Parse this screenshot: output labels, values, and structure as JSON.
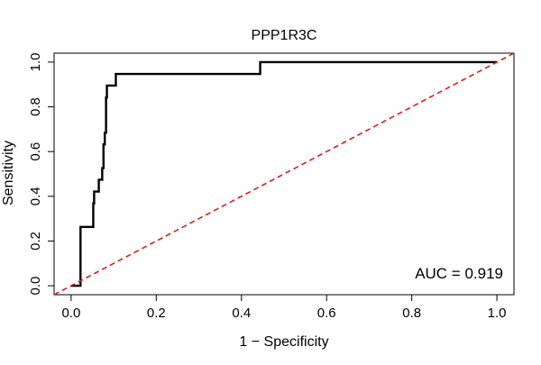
{
  "chart_data": {
    "type": "line",
    "title": "PPP1R3C",
    "xlabel": "1 − Specificity",
    "ylabel": "Sensitivity",
    "xlim": [
      -0.04,
      1.04
    ],
    "ylim": [
      -0.04,
      1.04
    ],
    "x_ticks": [
      0.0,
      0.2,
      0.4,
      0.6,
      0.8,
      1.0
    ],
    "x_tick_labels": [
      "0.0",
      "0.2",
      "0.4",
      "0.6",
      "0.8",
      "1.0"
    ],
    "y_ticks": [
      0.0,
      0.2,
      0.4,
      0.6,
      0.8,
      1.0
    ],
    "y_tick_labels": [
      "0.0",
      "0.2",
      "0.4",
      "0.6",
      "0.8",
      "1.0"
    ],
    "grid": false,
    "annotation": "AUC = 0.919",
    "series": [
      {
        "style": "solid",
        "color": "#000000",
        "x": [
          0.0,
          0.022,
          0.022,
          0.052,
          0.052,
          0.054,
          0.054,
          0.065,
          0.065,
          0.073,
          0.073,
          0.076,
          0.076,
          0.079,
          0.079,
          0.082,
          0.082,
          0.084,
          0.084,
          0.087,
          0.087,
          0.105,
          0.105,
          0.444,
          0.444,
          1.0
        ],
        "y": [
          0.0,
          0.0,
          0.263,
          0.263,
          0.368,
          0.368,
          0.421,
          0.421,
          0.474,
          0.474,
          0.526,
          0.526,
          0.632,
          0.632,
          0.684,
          0.684,
          0.842,
          0.842,
          0.895,
          0.895,
          0.895,
          0.895,
          0.947,
          0.947,
          1.0,
          1.0
        ]
      },
      {
        "style": "dashed",
        "color": "#e31a1c",
        "x": [
          -0.04,
          1.04
        ],
        "y": [
          -0.04,
          1.04
        ]
      }
    ]
  }
}
